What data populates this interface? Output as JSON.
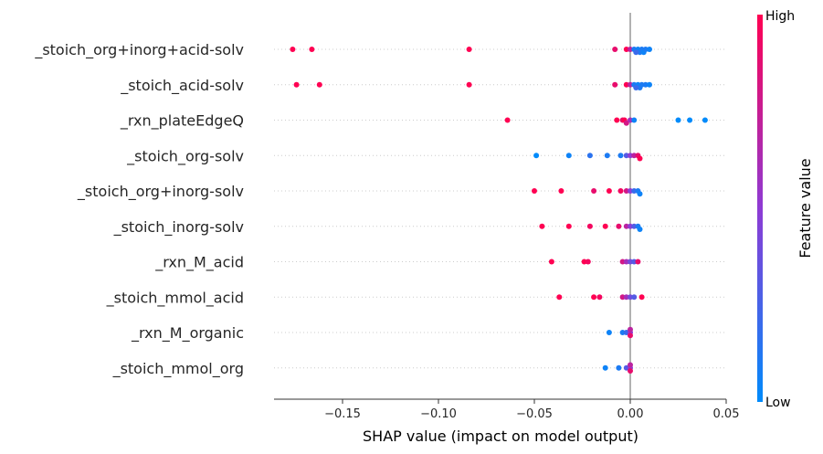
{
  "chart_data": {
    "type": "scatter",
    "subtype": "shap-beeswarm-summary",
    "title": "",
    "xlabel": "SHAP value (impact on model output)",
    "ylabel": "",
    "xlim": [
      -0.187,
      0.05
    ],
    "x_ticks": [
      -0.15,
      -0.1,
      -0.05,
      0.0,
      0.05
    ],
    "x_tick_labels": [
      "−0.15",
      "−0.10",
      "−0.05",
      "0.00",
      "0.05"
    ],
    "grid": "horizontal dotted row guides",
    "colorbar": {
      "title": "Feature value",
      "high_label": "High",
      "low_label": "Low",
      "high_color": "#ff0052",
      "mid_color": "#8e3bd4",
      "low_color": "#008bfb",
      "placement": "right"
    },
    "features": [
      {
        "name": "_stoich_org+inorg+acid-solv",
        "points": [
          [
            -0.176,
            1
          ],
          [
            -0.166,
            1
          ],
          [
            -0.084,
            1
          ],
          [
            -0.008,
            0.9
          ],
          [
            -0.002,
            1
          ],
          [
            0.0,
            0.7
          ],
          [
            0.002,
            0.1
          ],
          [
            0.004,
            0.05
          ],
          [
            0.005,
            0.1
          ],
          [
            0.006,
            0.1
          ],
          [
            0.007,
            0.05
          ],
          [
            0.008,
            0.1
          ],
          [
            0.01,
            0.05
          ],
          [
            0.003,
            0.2
          ]
        ]
      },
      {
        "name": "_stoich_acid-solv",
        "points": [
          [
            -0.174,
            1
          ],
          [
            -0.162,
            1
          ],
          [
            -0.084,
            1
          ],
          [
            -0.008,
            0.9
          ],
          [
            -0.002,
            1
          ],
          [
            0.0,
            0.7
          ],
          [
            0.002,
            0.1
          ],
          [
            0.004,
            0.05
          ],
          [
            0.005,
            0.1
          ],
          [
            0.006,
            0.1
          ],
          [
            0.008,
            0.1
          ],
          [
            0.01,
            0.05
          ],
          [
            0.003,
            0.2
          ]
        ]
      },
      {
        "name": "_rxn_plateEdgeQ",
        "points": [
          [
            -0.064,
            1
          ],
          [
            -0.007,
            1
          ],
          [
            -0.004,
            0.9
          ],
          [
            -0.003,
            1
          ],
          [
            -0.002,
            0.8
          ],
          [
            0.0,
            0.6
          ],
          [
            0.002,
            0.05
          ],
          [
            0.025,
            0.0
          ],
          [
            0.031,
            0.0
          ],
          [
            0.039,
            0.0
          ]
        ]
      },
      {
        "name": "_stoich_org-solv",
        "points": [
          [
            -0.049,
            0.0
          ],
          [
            -0.032,
            0.05
          ],
          [
            -0.021,
            0.15
          ],
          [
            -0.012,
            0.1
          ],
          [
            -0.005,
            0.1
          ],
          [
            -0.002,
            0.3
          ],
          [
            0.0,
            0.5
          ],
          [
            0.002,
            0.7
          ],
          [
            0.004,
            0.9
          ],
          [
            0.005,
            1
          ]
        ]
      },
      {
        "name": "_stoich_org+inorg-solv",
        "points": [
          [
            -0.05,
            1
          ],
          [
            -0.036,
            1
          ],
          [
            -0.019,
            0.9
          ],
          [
            -0.011,
            1
          ],
          [
            -0.005,
            0.95
          ],
          [
            -0.002,
            0.8
          ],
          [
            0.0,
            0.5
          ],
          [
            0.002,
            0.2
          ],
          [
            0.004,
            0.1
          ],
          [
            0.005,
            0.05
          ]
        ]
      },
      {
        "name": "_stoich_inorg-solv",
        "points": [
          [
            -0.046,
            1
          ],
          [
            -0.032,
            1
          ],
          [
            -0.021,
            0.95
          ],
          [
            -0.013,
            1
          ],
          [
            -0.006,
            0.9
          ],
          [
            -0.002,
            0.7
          ],
          [
            0.0,
            0.5
          ],
          [
            0.002,
            0.3
          ],
          [
            0.004,
            0.1
          ],
          [
            0.005,
            0.05
          ]
        ]
      },
      {
        "name": "_rxn_M_acid",
        "points": [
          [
            -0.041,
            1
          ],
          [
            -0.024,
            1
          ],
          [
            -0.022,
            0.95
          ],
          [
            -0.004,
            0.8
          ],
          [
            -0.002,
            0.6
          ],
          [
            0.0,
            0.4
          ],
          [
            0.002,
            0.3
          ],
          [
            0.004,
            0.9
          ]
        ]
      },
      {
        "name": "_stoich_mmol_acid",
        "points": [
          [
            -0.037,
            1
          ],
          [
            -0.019,
            1
          ],
          [
            -0.016,
            0.95
          ],
          [
            -0.004,
            0.8
          ],
          [
            -0.002,
            0.6
          ],
          [
            0.0,
            0.4
          ],
          [
            0.002,
            0.3
          ],
          [
            0.006,
            1
          ]
        ]
      },
      {
        "name": "_rxn_M_organic",
        "points": [
          [
            -0.011,
            0.05
          ],
          [
            -0.004,
            0.1
          ],
          [
            -0.002,
            0.2
          ],
          [
            0.0,
            0.5
          ],
          [
            0.0,
            0.9
          ],
          [
            0.0,
            0.7
          ]
        ]
      },
      {
        "name": "_stoich_mmol_org",
        "points": [
          [
            -0.013,
            0.05
          ],
          [
            -0.006,
            0.1
          ],
          [
            -0.002,
            0.3
          ],
          [
            0.0,
            0.5
          ],
          [
            0.0,
            0.9
          ],
          [
            0.0,
            0.7
          ]
        ]
      }
    ]
  }
}
